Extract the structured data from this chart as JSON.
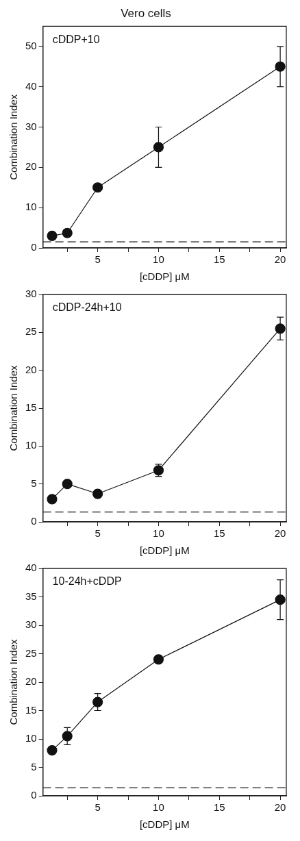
{
  "chart_data": [
    {
      "type": "line",
      "title": "Vero cells",
      "xlabel": "[cDDP] μM",
      "ylabel": "Combination Index",
      "annotations": [
        "cDDP+10"
      ],
      "x": [
        1.25,
        2.5,
        5,
        10,
        20
      ],
      "series": [
        {
          "color": "#111111",
          "values": [
            3,
            3.7,
            15,
            25,
            45
          ],
          "errors": [
            null,
            null,
            null,
            5,
            5
          ]
        }
      ],
      "xlim": [
        0.5,
        20.5
      ],
      "xticks": [
        {
          "value": 2.5,
          "label": null
        },
        5,
        {
          "value": 7.5,
          "label": null
        },
        10,
        {
          "value": 12.5,
          "label": null
        },
        15,
        {
          "value": 17.5,
          "label": null
        },
        20
      ],
      "ylim": [
        0,
        55
      ],
      "yticks": [
        0,
        10,
        20,
        30,
        40,
        50
      ],
      "ref_lines": [
        {
          "axis": "y",
          "value": 1.5,
          "line_style": "dashed",
          "color": "#111111"
        }
      ],
      "marker": "circle",
      "line_style": "solid",
      "grid": false,
      "legend": false
    },
    {
      "type": "line",
      "xlabel": "[cDDP] μM",
      "ylabel": "Combination Index",
      "annotations": [
        "cDDP-24h+10"
      ],
      "x": [
        1.25,
        2.5,
        5,
        10,
        20
      ],
      "series": [
        {
          "color": "#111111",
          "values": [
            3,
            5,
            3.7,
            6.8,
            25.5
          ],
          "errors": [
            null,
            null,
            null,
            0.8,
            1.5
          ]
        }
      ],
      "xlim": [
        0.5,
        20.5
      ],
      "xticks": [
        {
          "value": 2.5,
          "label": null
        },
        5,
        {
          "value": 7.5,
          "label": null
        },
        10,
        {
          "value": 12.5,
          "label": null
        },
        15,
        {
          "value": 17.5,
          "label": null
        },
        20
      ],
      "ylim": [
        0,
        30
      ],
      "yticks": [
        0,
        5,
        10,
        15,
        20,
        25,
        30
      ],
      "ref_lines": [
        {
          "axis": "y",
          "value": 1.3,
          "line_style": "dashed",
          "color": "#111111"
        }
      ],
      "marker": "circle",
      "line_style": "solid",
      "grid": false,
      "legend": false
    },
    {
      "type": "line",
      "xlabel": "[cDDP] μM",
      "ylabel": "Combination Index",
      "annotations": [
        "10-24h+cDDP"
      ],
      "x": [
        1.25,
        2.5,
        5,
        10,
        20
      ],
      "series": [
        {
          "color": "#111111",
          "values": [
            8,
            10.5,
            16.5,
            24,
            34.5
          ],
          "errors": [
            null,
            1.5,
            1.5,
            0.6,
            3.5
          ]
        }
      ],
      "xlim": [
        0.5,
        20.5
      ],
      "xticks": [
        {
          "value": 2.5,
          "label": null
        },
        5,
        {
          "value": 7.5,
          "label": null
        },
        10,
        {
          "value": 12.5,
          "label": null
        },
        15,
        {
          "value": 17.5,
          "label": null
        },
        20
      ],
      "ylim": [
        0,
        40
      ],
      "yticks": [
        0,
        5,
        10,
        15,
        20,
        25,
        30,
        35,
        40
      ],
      "ref_lines": [
        {
          "axis": "y",
          "value": 1.4,
          "line_style": "dashed",
          "color": "#111111"
        }
      ],
      "marker": "circle",
      "line_style": "solid",
      "grid": false,
      "legend": false
    }
  ]
}
